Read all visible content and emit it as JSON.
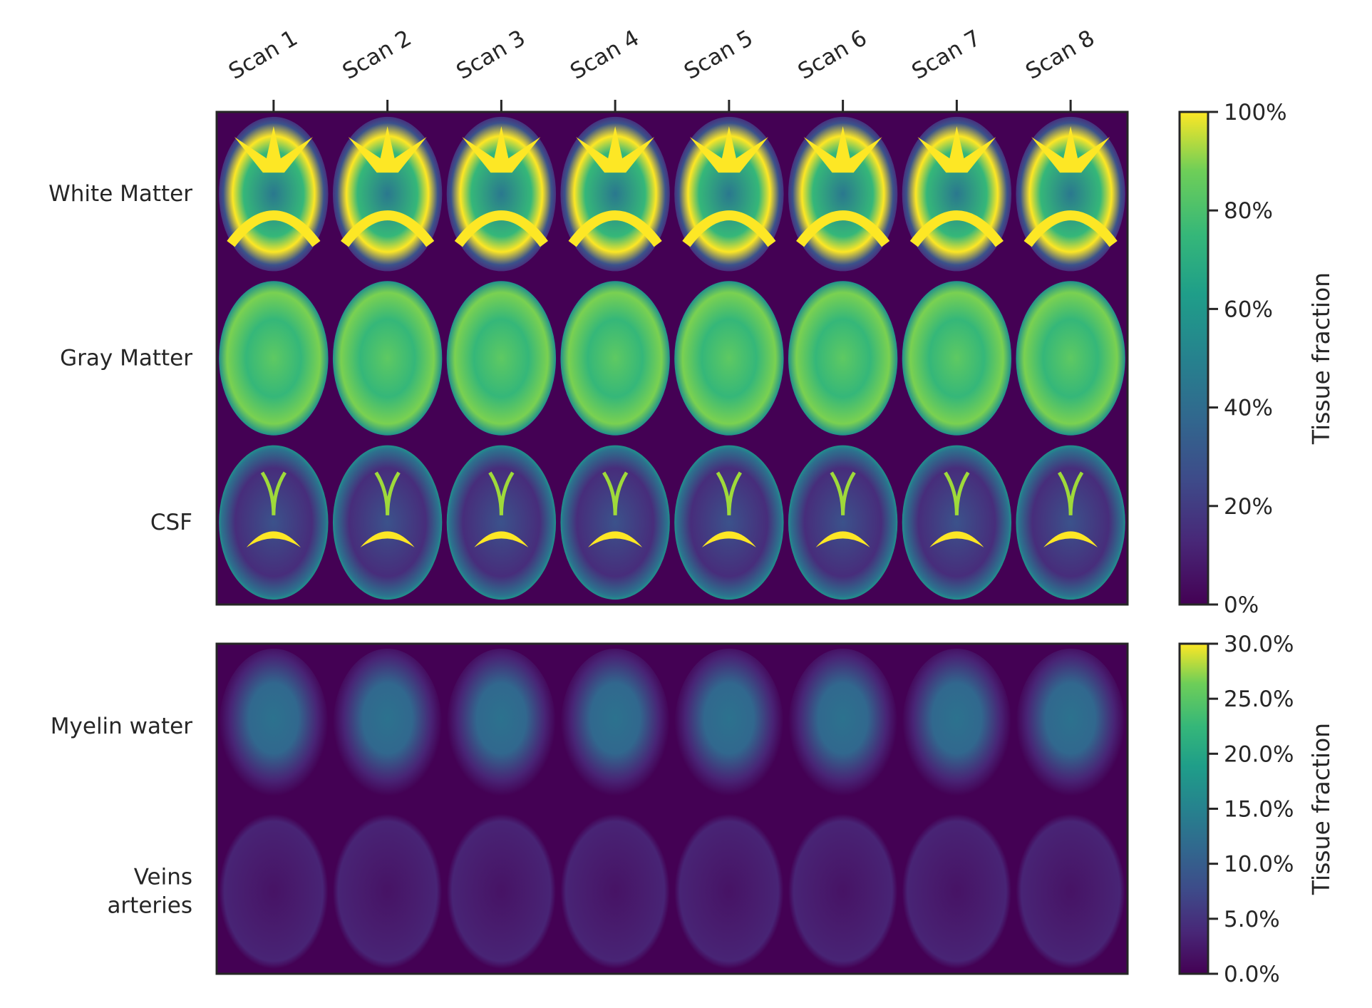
{
  "chart_data": [
    {
      "type": "heatmap",
      "columns": [
        "Scan 1",
        "Scan 2",
        "Scan 3",
        "Scan 4",
        "Scan 5",
        "Scan 6",
        "Scan 7",
        "Scan 8"
      ],
      "rows": [
        "White Matter",
        "Gray Matter",
        "CSF"
      ],
      "colormap": "viridis",
      "colorbar": {
        "label": "Tissue fraction",
        "range": [
          0,
          100
        ],
        "ticks": [
          "0%",
          "20%",
          "40%",
          "60%",
          "80%",
          "100%"
        ]
      }
    },
    {
      "type": "heatmap",
      "columns": [
        "Scan 1",
        "Scan 2",
        "Scan 3",
        "Scan 4",
        "Scan 5",
        "Scan 6",
        "Scan 7",
        "Scan 8"
      ],
      "rows": [
        "Myelin water",
        "Veins\narteries"
      ],
      "colormap": "viridis",
      "colorbar": {
        "label": "Tissue fraction",
        "range": [
          0,
          30
        ],
        "ticks": [
          "0.0%",
          "5.0%",
          "10.0%",
          "15.0%",
          "20.0%",
          "25.0%",
          "30.0%"
        ]
      }
    }
  ],
  "colors": {
    "background": "#440154",
    "low": "#440154",
    "mid": "#21918c",
    "high": "#fde725"
  }
}
